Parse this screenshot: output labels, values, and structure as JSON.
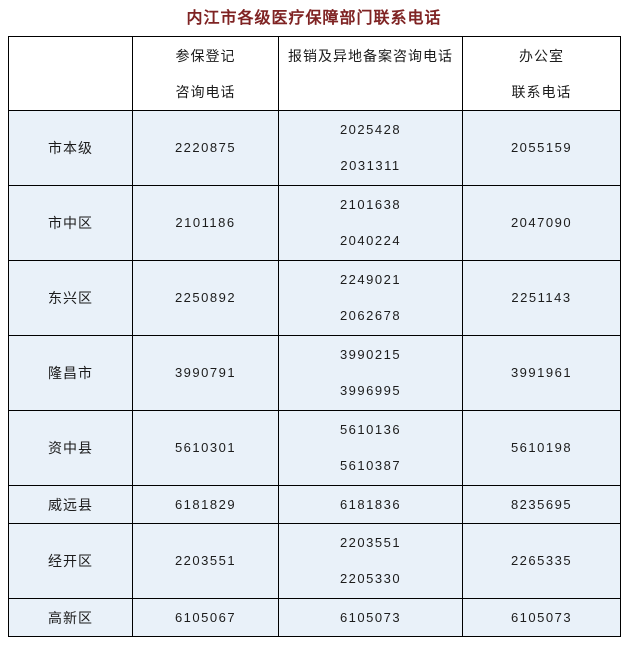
{
  "title": "内江市各级医疗保障部门联系电话",
  "colors": {
    "title": "#7f2323",
    "row_bg": "#e9f1f9",
    "border": "#000000",
    "text": "#1c1c1c"
  },
  "table": {
    "headers": [
      {
        "lines": []
      },
      {
        "lines": [
          "参保登记",
          "咨询电话"
        ]
      },
      {
        "lines": [
          "报销及异地备案咨询电话",
          ""
        ]
      },
      {
        "lines": [
          "办公室",
          "联系电话"
        ]
      }
    ],
    "rows": [
      {
        "label": "市本级",
        "register": [
          "2220875"
        ],
        "reimburse": [
          "2025428",
          "2031311"
        ],
        "office": [
          "2055159"
        ]
      },
      {
        "label": "市中区",
        "register": [
          "2101186"
        ],
        "reimburse": [
          "2101638",
          "2040224"
        ],
        "office": [
          "2047090"
        ]
      },
      {
        "label": "东兴区",
        "register": [
          "2250892"
        ],
        "reimburse": [
          "2249021",
          "2062678"
        ],
        "office": [
          "2251143"
        ]
      },
      {
        "label": "隆昌市",
        "register": [
          "3990791"
        ],
        "reimburse": [
          "3990215",
          "3996995"
        ],
        "office": [
          "3991961"
        ]
      },
      {
        "label": "资中县",
        "register": [
          "5610301"
        ],
        "reimburse": [
          "5610136",
          "5610387"
        ],
        "office": [
          "5610198"
        ]
      },
      {
        "label": "威远县",
        "register": [
          "6181829"
        ],
        "reimburse": [
          "6181836"
        ],
        "office": [
          "8235695"
        ]
      },
      {
        "label": "经开区",
        "register": [
          "2203551"
        ],
        "reimburse": [
          "2203551",
          "2205330"
        ],
        "office": [
          "2265335"
        ]
      },
      {
        "label": "高新区",
        "register": [
          "6105067"
        ],
        "reimburse": [
          "6105073"
        ],
        "office": [
          "6105073"
        ]
      }
    ]
  }
}
